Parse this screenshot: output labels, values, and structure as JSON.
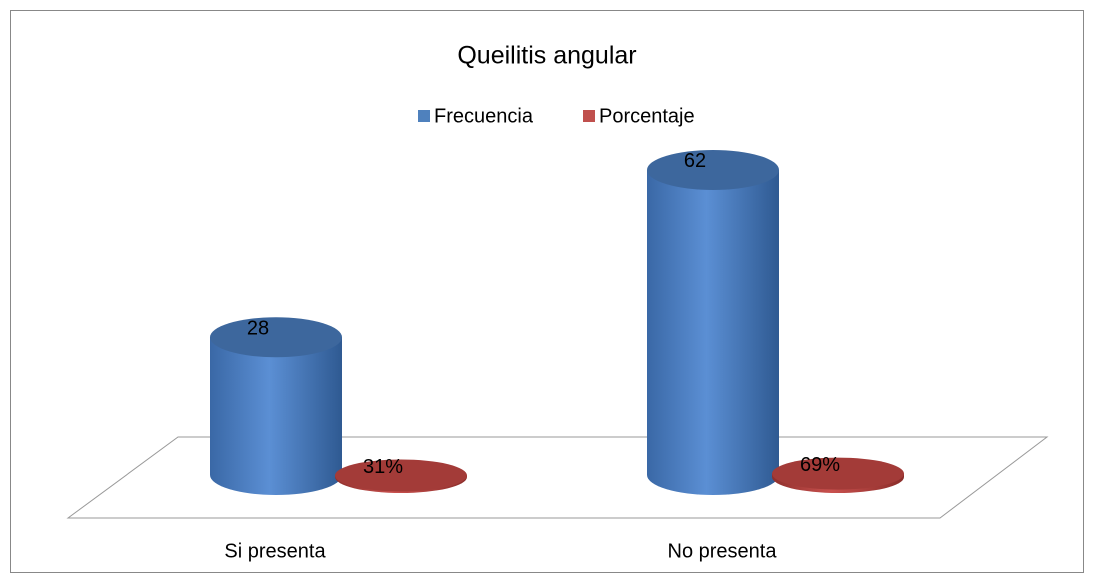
{
  "chart_data": {
    "type": "bar3d",
    "title": "Queilitis angular",
    "categories": [
      "Si presenta",
      "No presenta"
    ],
    "series": [
      {
        "name": "Frecuencia",
        "color": "#4f81bd",
        "values": [
          28,
          62
        ],
        "value_labels": [
          "28",
          "62"
        ]
      },
      {
        "name": "Porcentaje",
        "color": "#c0504d",
        "values": [
          0.31,
          0.69
        ],
        "value_labels": [
          "31%",
          "69%"
        ]
      }
    ],
    "legend": "top"
  }
}
